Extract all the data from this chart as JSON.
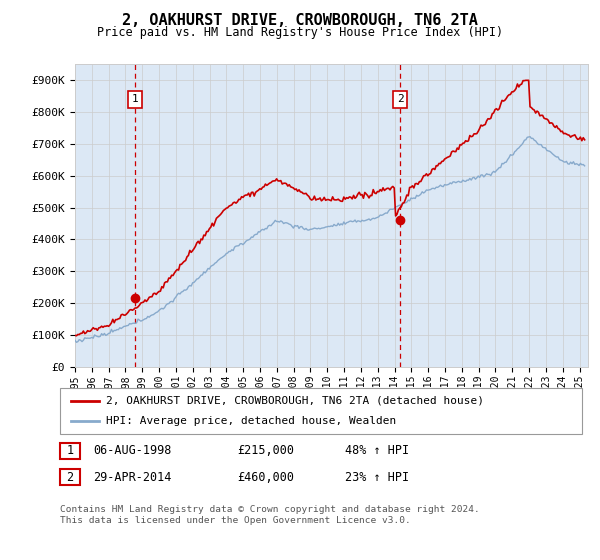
{
  "title": "2, OAKHURST DRIVE, CROWBOROUGH, TN6 2TA",
  "subtitle": "Price paid vs. HM Land Registry's House Price Index (HPI)",
  "ylabel_ticks": [
    "£0",
    "£100K",
    "£200K",
    "£300K",
    "£400K",
    "£500K",
    "£600K",
    "£700K",
    "£800K",
    "£900K"
  ],
  "ytick_values": [
    0,
    100000,
    200000,
    300000,
    400000,
    500000,
    600000,
    700000,
    800000,
    900000
  ],
  "ylim": [
    0,
    950000
  ],
  "xlim_start": 1995.0,
  "xlim_end": 2025.5,
  "sale1_x": 1998.58,
  "sale1_y": 215000,
  "sale1_label": "1",
  "sale2_x": 2014.33,
  "sale2_y": 460000,
  "sale2_label": "2",
  "line_color_house": "#cc0000",
  "line_color_hpi": "#88aacc",
  "legend_house": "2, OAKHURST DRIVE, CROWBOROUGH, TN6 2TA (detached house)",
  "legend_hpi": "HPI: Average price, detached house, Wealden",
  "annotation1_date": "06-AUG-1998",
  "annotation1_price": "£215,000",
  "annotation1_hpi": "48% ↑ HPI",
  "annotation2_date": "29-APR-2014",
  "annotation2_price": "£460,000",
  "annotation2_hpi": "23% ↑ HPI",
  "footnote": "Contains HM Land Registry data © Crown copyright and database right 2024.\nThis data is licensed under the Open Government Licence v3.0.",
  "grid_color": "#cccccc",
  "plot_bg": "#dce8f5"
}
